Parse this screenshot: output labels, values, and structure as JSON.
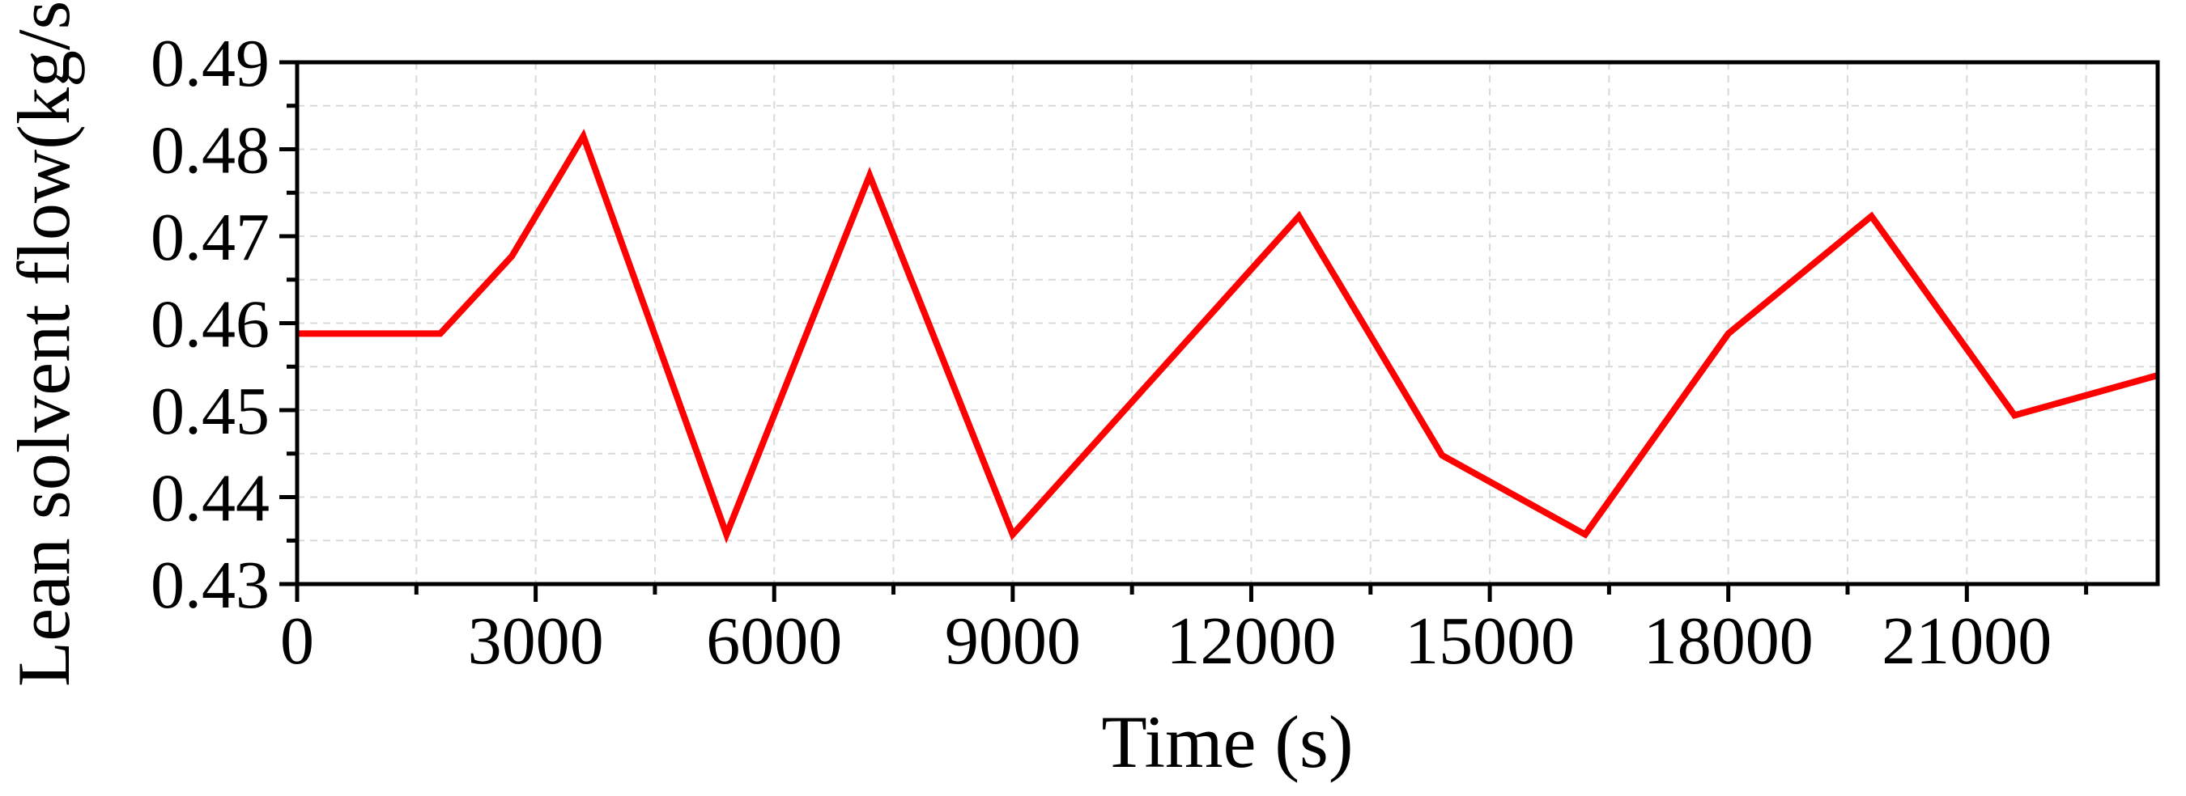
{
  "chart_data": {
    "type": "line",
    "step": true,
    "xlabel": "Time (s)",
    "ylabel": "Lean solvent flow(kg/s)",
    "xlim": [
      0,
      23400
    ],
    "ylim": [
      0.43,
      0.49
    ],
    "x_ticks": [
      0,
      3000,
      6000,
      9000,
      12000,
      15000,
      18000,
      21000
    ],
    "x_tick_labels": [
      "0",
      "3000",
      "6000",
      "9000",
      "12000",
      "15000",
      "18000",
      "21000"
    ],
    "x_minor_step": 1500,
    "y_ticks": [
      0.43,
      0.44,
      0.45,
      0.46,
      0.47,
      0.48,
      0.49
    ],
    "y_tick_labels": [
      "0.43",
      "0.44",
      "0.45",
      "0.46",
      "0.47",
      "0.48",
      "0.49"
    ],
    "y_minor_step": 0.005,
    "grid": true,
    "series": [
      {
        "color": "#ff0000",
        "x": [
          0,
          1800,
          1800,
          2700,
          2700,
          3600,
          3600,
          5400,
          5400,
          7200,
          7200,
          9000,
          9000,
          10800,
          10800,
          12600,
          12600,
          14400,
          14400,
          16200,
          16200,
          18000,
          18000,
          19800,
          19800,
          21600,
          21600,
          23400
        ],
        "y": [
          0.4588,
          0.4588,
          0.4588,
          0.4677,
          0.4677,
          0.4815,
          0.4815,
          0.4357,
          0.4357,
          0.477,
          0.477,
          0.4357,
          0.4357,
          0.454,
          0.454,
          0.4723,
          0.4723,
          0.4448,
          0.4448,
          0.4357,
          0.4357,
          0.4588,
          0.4588,
          0.4723,
          0.4723,
          0.4494,
          0.4494,
          0.454
        ]
      }
    ]
  }
}
